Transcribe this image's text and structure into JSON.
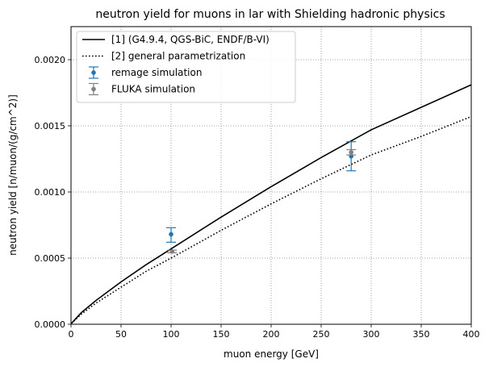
{
  "chart_data": {
    "type": "line",
    "title": "neutron yield for muons in lar with Shielding hadronic physics",
    "xlabel": "muon energy [GeV]",
    "ylabel": "neutron yield [n/muon/(g/cm^2)]",
    "xlim": [
      0,
      400
    ],
    "ylim": [
      0,
      0.00225
    ],
    "x_ticks": [
      0,
      50,
      100,
      150,
      200,
      250,
      300,
      350,
      400
    ],
    "x_tick_labels": [
      "0",
      "50",
      "100",
      "150",
      "200",
      "250",
      "300",
      "350",
      "400"
    ],
    "y_ticks": [
      0,
      0.0005,
      0.001,
      0.0015,
      0.002
    ],
    "y_tick_labels": [
      "0.0000",
      "0.0005",
      "0.0010",
      "0.0015",
      "0.0020"
    ],
    "grid": true,
    "legend_position": "top-left",
    "series": [
      {
        "name": "[1] (G4.9.4, QGS-BiC, ENDF/B-VI)",
        "kind": "curve",
        "style": "solid",
        "color": "#000000",
        "x": [
          0.5,
          10,
          25,
          50,
          75,
          100,
          150,
          200,
          250,
          300,
          350,
          400
        ],
        "y": [
          7.7e-06,
          8.6e-05,
          0.00018,
          0.00032,
          0.00045,
          0.00057,
          0.00081,
          0.00104,
          0.00126,
          0.00147,
          0.00164,
          0.00181
        ]
      },
      {
        "name": "[2] general parametrization",
        "kind": "curve",
        "style": "dotted",
        "color": "#000000",
        "x": [
          0.5,
          10,
          25,
          50,
          75,
          100,
          150,
          200,
          250,
          300,
          350,
          400
        ],
        "y": [
          6.6e-06,
          7.4e-05,
          0.00016,
          0.00028,
          0.0004,
          0.0005,
          0.00071,
          0.00091,
          0.0011,
          0.00128,
          0.00142,
          0.00157
        ]
      },
      {
        "name": "remage simulation",
        "kind": "errorbar",
        "color": "#1f77b4",
        "x": [
          100,
          280
        ],
        "y": [
          0.00068,
          0.00127
        ],
        "yerr_low": [
          6e-05,
          0.00011
        ],
        "yerr_high": [
          5e-05,
          0.00011
        ]
      },
      {
        "name": "FLUKA simulation",
        "kind": "errorbar",
        "color": "#808080",
        "x": [
          101,
          280
        ],
        "y": [
          0.00055,
          0.0013
        ],
        "yerr_low": [
          1e-05,
          2e-05
        ],
        "yerr_high": [
          1e-05,
          2e-05
        ]
      }
    ]
  }
}
